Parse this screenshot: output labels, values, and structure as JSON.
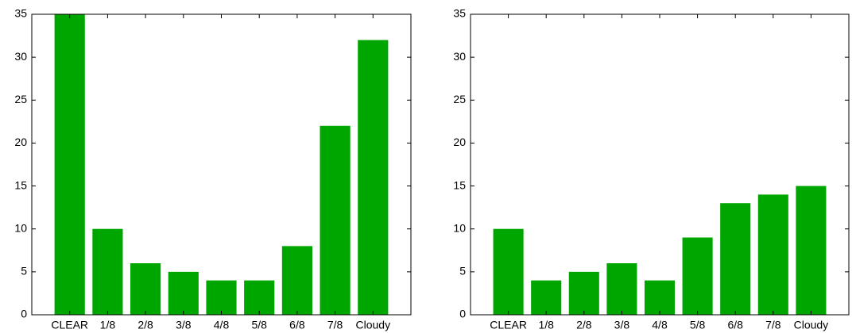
{
  "chart_data": [
    {
      "type": "bar",
      "categories": [
        "CLEAR",
        "1/8",
        "2/8",
        "3/8",
        "4/8",
        "5/8",
        "6/8",
        "7/8",
        "Cloudy"
      ],
      "values": [
        35,
        10,
        6,
        5,
        4,
        4,
        8,
        22,
        32
      ],
      "color": "#00a600",
      "ylim": [
        0,
        35
      ],
      "yticks": [
        0,
        5,
        10,
        15,
        20,
        25,
        30,
        35
      ]
    },
    {
      "type": "bar",
      "categories": [
        "CLEAR",
        "1/8",
        "2/8",
        "3/8",
        "4/8",
        "5/8",
        "6/8",
        "7/8",
        "Cloudy"
      ],
      "values": [
        10,
        4,
        5,
        6,
        4,
        9,
        13,
        14,
        15
      ],
      "color": "#00a600",
      "ylim": [
        0,
        35
      ],
      "yticks": [
        0,
        5,
        10,
        15,
        20,
        25,
        30,
        35
      ]
    }
  ]
}
